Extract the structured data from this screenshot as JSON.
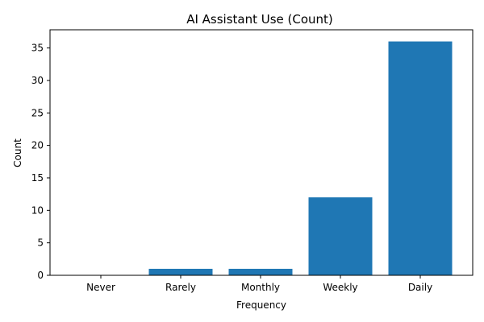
{
  "chart_data": {
    "type": "bar",
    "title": "AI Assistant Use (Count)",
    "xlabel": "Frequency",
    "ylabel": "Count",
    "categories": [
      "Never",
      "Rarely",
      "Monthly",
      "Weekly",
      "Daily"
    ],
    "values": [
      0,
      1,
      1,
      12,
      36
    ],
    "ylim": [
      0,
      37.8
    ],
    "yticks": [
      0,
      5,
      10,
      15,
      20,
      25,
      30,
      35
    ],
    "grid": false,
    "legend": "none",
    "bar_color": "#1f77b4"
  }
}
